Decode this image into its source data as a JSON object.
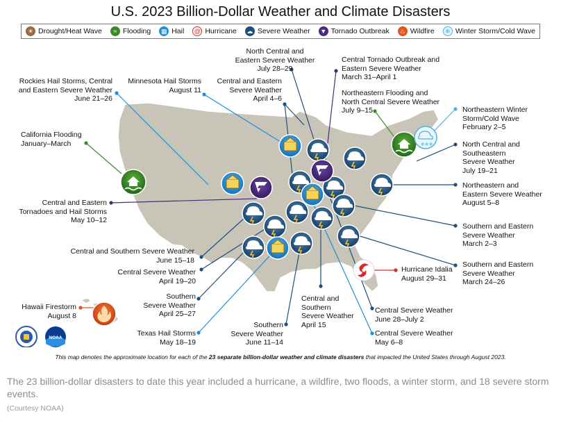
{
  "title": "U.S. 2023 Billion-Dollar Weather and Climate Disasters",
  "legend": [
    {
      "label": "Drought/Heat Wave",
      "icon": "drought-icon",
      "color": "#8a5a2b"
    },
    {
      "label": "Flooding",
      "icon": "flood-icon",
      "color": "#3a8a2a"
    },
    {
      "label": "Hail",
      "icon": "hail-icon",
      "color": "#1e8fd8"
    },
    {
      "label": "Hurricane",
      "icon": "hurricane-icon",
      "color": "#d62b2b"
    },
    {
      "label": "Severe Weather",
      "icon": "severe-weather-icon",
      "color": "#1f4f7a"
    },
    {
      "label": "Tornado Outbreak",
      "icon": "tornado-icon",
      "color": "#4b2a7a"
    },
    {
      "label": "Wildfire",
      "icon": "wildfire-icon",
      "color": "#e0571f"
    },
    {
      "label": "Winter Storm/Cold Wave",
      "icon": "winter-storm-icon",
      "color": "#4fb3e0"
    }
  ],
  "events": {
    "north_central_eastern": "North Central and\nEastern Severe Weather\nJuly 28–29",
    "central_tornado": "Central Tornado Outbreak and\nEastern Severe Weather\nMarch 31–April 1",
    "rockies_hail": "Rockies Hail Storms, Central\nand Eastern Severe Weather\nJune 21–26",
    "minnesota_hail": "Minnesota Hail Storms\nAugust 11",
    "central_eastern_april": "Central and Eastern\nSevere Weather\nApril 4–6",
    "northeastern_flooding": "Northeastern Flooding and\nNorth Central Severe Weather\nJuly 9–15",
    "northeastern_winter": "Northeastern Winter\nStorm/Cold Wave\nFebruary 2–5",
    "california_flooding": "California Flooding\nJanuary–March",
    "north_central_southeastern": "North Central and\nSoutheastern\nSevere Weather\nJuly 19–21",
    "central_eastern_tornadoes": "Central and Eastern\nTornadoes and Hail Storms\nMay 10–12",
    "northeastern_eastern": "Northeastern and\nEastern Severe Weather\nAugust 5–8",
    "southern_eastern_march2": "Southern and Eastern\nSevere Weather\nMarch 2–3",
    "central_southern_june": "Central and Southern Severe Weather\nJune 15–18",
    "southern_eastern_march24": "Southern and Eastern\nSevere Weather\nMarch 24–26",
    "central_april19": "Central Severe Weather\nApril 19–20",
    "hurricane_idalia": "Hurricane Idalia\nAugust 29–31",
    "southern_april25": "Southern\nSevere Weather\nApril 25–27",
    "central_southern_april15": "Central and\nSouthern\nSevere Weather\nApril 15",
    "hawaii": "Hawaii Firestorm\nAugust 8",
    "central_june28": "Central Severe Weather\nJune 28–July 2",
    "texas_hail": "Texas Hail Storms\nMay 18–19",
    "southern_june11": "Southern\nSevere Weather\nJune 11–14",
    "central_may6": "Central Severe Weather\nMay 6–8"
  },
  "footnote": {
    "before": "This map denotes the approximate location for each of the ",
    "bold": "23 separate billion-dollar weather and climate disasters",
    "after": " that impacted the United States through August 2023."
  },
  "caption": "The 23 billion-dollar disasters to date this year included a hurricane, a wildfire, two floods, a winter storm, and 18 severe storm events.",
  "credit": "(Courtesy NOAA)",
  "logos": [
    {
      "name": "commerce-seal",
      "text": ""
    },
    {
      "name": "noaa-logo",
      "text": "NOAA"
    }
  ]
}
